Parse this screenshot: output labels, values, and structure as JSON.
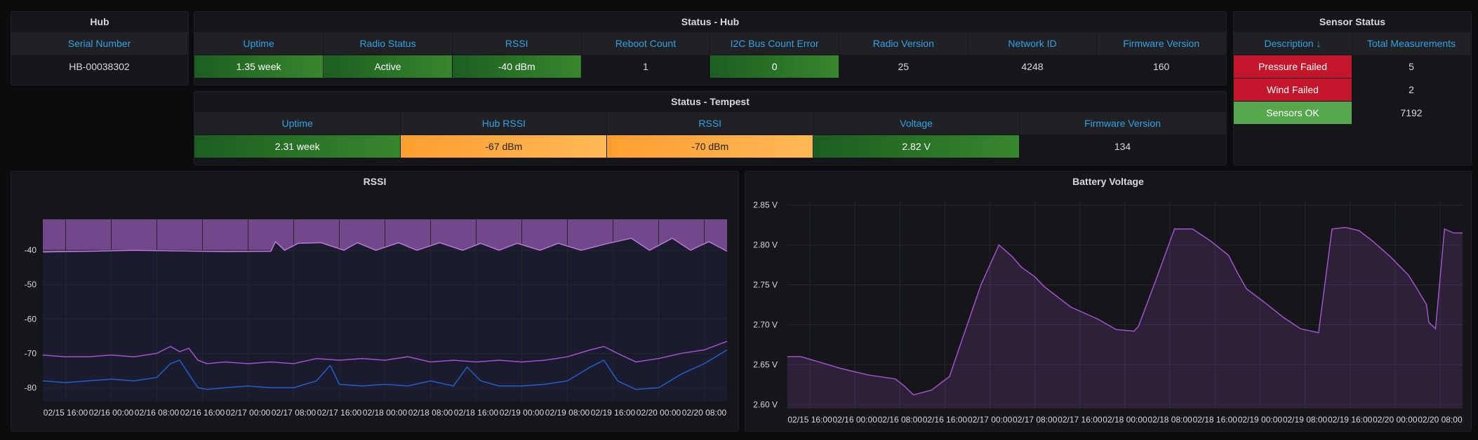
{
  "hub": {
    "title": "Hub",
    "col": "Serial Number",
    "serial": "HB-00038302"
  },
  "status_hub": {
    "title": "Status - Hub",
    "columns": [
      "Uptime",
      "Radio Status",
      "RSSI",
      "Reboot Count",
      "I2C Bus Count Error",
      "Radio Version",
      "Network ID",
      "Firmware Version"
    ],
    "values": [
      "1.35 week",
      "Active",
      "-40 dBm",
      "1",
      "0",
      "25",
      "4248",
      "160"
    ]
  },
  "status_tempest": {
    "title": "Status - Tempest",
    "columns": [
      "Uptime",
      "Hub RSSI",
      "RSSI",
      "Voltage",
      "Firmware Version"
    ],
    "values": [
      "2.31 week",
      "-67 dBm",
      "-70 dBm",
      "2.82 V",
      "134"
    ]
  },
  "sensor_status": {
    "title": "Sensor Status",
    "col_desc": "Description ↓",
    "col_total": "Total Measurements",
    "rows": [
      {
        "desc": "Pressure Failed",
        "total": "5"
      },
      {
        "desc": "Wind Failed",
        "total": "2"
      },
      {
        "desc": "Sensors OK",
        "total": "7192"
      }
    ]
  },
  "colors": {
    "purple": "#a352cc",
    "blue": "#1f60c4",
    "green": "#37872d",
    "orange": "#ff9830",
    "red": "#c4162a",
    "link": "#33a2e5"
  },
  "chart_data": [
    {
      "type": "line",
      "title": "RSSI",
      "x_ticks": [
        "02/15 16:00",
        "02/16 00:00",
        "02/16 08:00",
        "02/16 16:00",
        "02/17 00:00",
        "02/17 08:00",
        "02/17 16:00",
        "02/18 00:00",
        "02/18 08:00",
        "02/18 16:00",
        "02/19 00:00",
        "02/19 08:00",
        "02/19 16:00",
        "02/20 00:00",
        "02/20 08:00"
      ],
      "y_ticks": [
        -40,
        -50,
        -60,
        -70,
        -80
      ],
      "ylim": [
        -84,
        -31
      ],
      "xlim": [
        0,
        15
      ],
      "series": [
        {
          "color": "#b877d9",
          "x": [
            0,
            1,
            2,
            3,
            4,
            5,
            5.1,
            5.3,
            5.6,
            6.1,
            6.6,
            6.9,
            7.3,
            7.8,
            8.2,
            8.7,
            9.2,
            9.6,
            10,
            10.4,
            10.9,
            11.3,
            11.8,
            12.4,
            12.9,
            13.3,
            13.8,
            14.2,
            14.6,
            15
          ],
          "y": [
            -40.5,
            -40.3,
            -40,
            -40.2,
            -40.4,
            -40.3,
            -37.5,
            -40,
            -38,
            -37.8,
            -40,
            -37.8,
            -40,
            -37.8,
            -40,
            -37.8,
            -40,
            -38,
            -40,
            -38,
            -40,
            -38,
            -40,
            -38,
            -36.5,
            -40,
            -36.5,
            -40,
            -37.5,
            -40.3
          ]
        },
        {
          "color": "#a352cc",
          "x": [
            0,
            0.5,
            1,
            1.5,
            2,
            2.5,
            2.8,
            3,
            3.2,
            3.4,
            3.6,
            4,
            4.5,
            5,
            5.5,
            6,
            6.5,
            7,
            7.5,
            8,
            8.5,
            9,
            9.5,
            10,
            10.5,
            11,
            11.5,
            12,
            12.3,
            12.6,
            13,
            13.5,
            14,
            14.5,
            15
          ],
          "y": [
            -70.5,
            -71,
            -71,
            -70.5,
            -71,
            -70,
            -68,
            -69.5,
            -68.5,
            -72,
            -73,
            -72.5,
            -73,
            -72.5,
            -73,
            -71.5,
            -72,
            -71.5,
            -72,
            -71,
            -72.5,
            -72,
            -72.5,
            -72,
            -72.5,
            -72,
            -71,
            -69,
            -68,
            -70,
            -72.5,
            -71.5,
            -70,
            -69,
            -66.5
          ]
        },
        {
          "color": "#1f60c4",
          "x": [
            0,
            0.5,
            1,
            1.5,
            2,
            2.5,
            2.8,
            3,
            3.2,
            3.4,
            3.6,
            4,
            4.5,
            5,
            5.5,
            6,
            6.3,
            6.5,
            7,
            7.5,
            8,
            8.5,
            9,
            9.3,
            9.6,
            10,
            10.5,
            11,
            11.5,
            12,
            12.3,
            12.6,
            13,
            13.5,
            14,
            14.5,
            15
          ],
          "y": [
            -78,
            -78.5,
            -78,
            -77.5,
            -78,
            -77,
            -73,
            -72,
            -76,
            -80,
            -80.5,
            -80,
            -79.5,
            -80,
            -80,
            -78,
            -73.5,
            -79,
            -79.5,
            -79,
            -79.5,
            -78,
            -79.5,
            -74,
            -78,
            -79.5,
            -79.5,
            -79,
            -78,
            -74,
            -72,
            -78,
            -80.5,
            -80,
            -76,
            -73,
            -69
          ]
        }
      ]
    },
    {
      "type": "area",
      "title": "Battery Voltage",
      "x_ticks": [
        "02/15 16:00",
        "02/16 00:00",
        "02/16 08:00",
        "02/16 16:00",
        "02/17 00:00",
        "02/17 08:00",
        "02/17 16:00",
        "02/18 00:00",
        "02/18 08:00",
        "02/18 16:00",
        "02/19 00:00",
        "02/19 08:00",
        "02/19 16:00",
        "02/20 00:00",
        "02/20 08:00"
      ],
      "y_ticks": [
        "2.60 V",
        "2.65 V",
        "2.70 V",
        "2.75 V",
        "2.80 V",
        "2.85 V"
      ],
      "y_tick_values": [
        2.6,
        2.65,
        2.7,
        2.75,
        2.8,
        2.85
      ],
      "ylim": [
        2.595,
        2.855
      ],
      "xlim": [
        0,
        15
      ],
      "series": [
        {
          "color": "#a352cc",
          "x": [
            0,
            0.3,
            0.6,
            1.2,
            1.8,
            2.4,
            2.6,
            2.8,
            3.2,
            3.6,
            3.8,
            4.3,
            4.7,
            5.0,
            5.2,
            5.5,
            5.7,
            6.0,
            6.3,
            6.9,
            7.3,
            7.7,
            7.8,
            8.2,
            8.6,
            9.0,
            9.4,
            9.8,
            10.0,
            10.2,
            10.6,
            11.0,
            11.4,
            11.8,
            12.1,
            12.4,
            12.7,
            13.0,
            13.4,
            13.8,
            14.0,
            14.2,
            14.25,
            14.4,
            14.6,
            14.8,
            15
          ],
          "y": [
            2.66,
            2.66,
            2.655,
            2.645,
            2.637,
            2.632,
            2.623,
            2.612,
            2.618,
            2.635,
            2.668,
            2.75,
            2.8,
            2.785,
            2.772,
            2.76,
            2.748,
            2.735,
            2.722,
            2.707,
            2.694,
            2.692,
            2.698,
            2.758,
            2.82,
            2.82,
            2.805,
            2.787,
            2.765,
            2.745,
            2.728,
            2.71,
            2.695,
            2.69,
            2.82,
            2.822,
            2.818,
            2.805,
            2.785,
            2.762,
            2.744,
            2.725,
            2.703,
            2.695,
            2.82,
            2.815,
            2.815
          ]
        }
      ]
    }
  ]
}
